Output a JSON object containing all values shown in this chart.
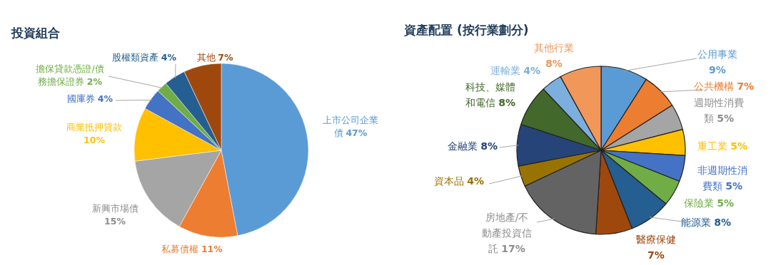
{
  "chart_data": [
    {
      "type": "pie",
      "title": "投資組合",
      "categories": [
        "上市公司企業債",
        "私募債權",
        "新興市場債",
        "商業抵押貸款",
        "國庫券",
        "擔保貸款憑證/債務擔保證券",
        "股權類資產",
        "其他"
      ],
      "values": [
        47,
        11,
        15,
        10,
        4,
        2,
        4,
        7
      ],
      "value_labels": [
        "47%",
        "11%",
        "15%",
        "10%",
        "4%",
        "2%",
        "4%",
        "7%"
      ],
      "colors": [
        "#5b9bd5",
        "#ed7d31",
        "#a5a5a5",
        "#ffc000",
        "#4472c4",
        "#70ad47",
        "#255e91",
        "#9e480e"
      ]
    },
    {
      "type": "pie",
      "title": "資產配置 (按行業劃分)",
      "categories": [
        "公用事業",
        "公共機構",
        "週期性消費類",
        "重工業",
        "非週期性消費類",
        "保險業",
        "能源業",
        "醫療保健",
        "房地產/不動產投資信託",
        "資本品",
        "金融業",
        "科技、媒體和電信",
        "運輸業",
        "其他行業"
      ],
      "values": [
        9,
        7,
        5,
        5,
        5,
        5,
        8,
        7,
        17,
        4,
        8,
        8,
        4,
        8
      ],
      "value_labels": [
        "9%",
        "7%",
        "5%",
        "5%",
        "5%",
        "5%",
        "8%",
        "7%",
        "17%",
        "4%",
        "8%",
        "8%",
        "4%",
        "8%"
      ],
      "colors": [
        "#5b9bd5",
        "#ed7d31",
        "#a5a5a5",
        "#ffc000",
        "#4472c4",
        "#70ad47",
        "#255e91",
        "#9e480e",
        "#636363",
        "#997300",
        "#264478",
        "#43682b",
        "#7cafdd",
        "#f1975a"
      ]
    }
  ]
}
